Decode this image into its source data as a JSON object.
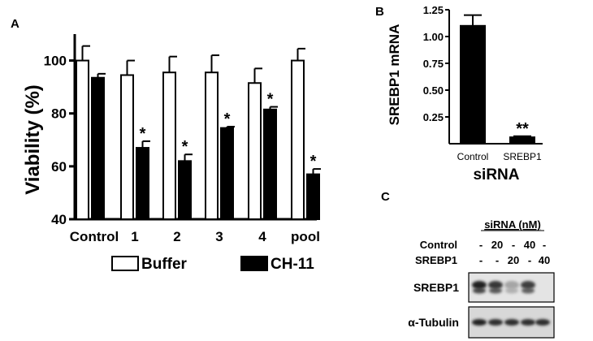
{
  "chart_data": [
    {
      "panel": "A",
      "type": "bar",
      "ylabel": "Viability (%)",
      "ylim": [
        40,
        110
      ],
      "yticks": [
        "40",
        "60",
        "80",
        "100"
      ],
      "categories": [
        "Control",
        "1",
        "2",
        "3",
        "4",
        "pool"
      ],
      "series": [
        {
          "name": "Buffer",
          "color": "#ffffff",
          "values": [
            100,
            94.5,
            95.5,
            95.5,
            91.5,
            100
          ],
          "errors": [
            5.5,
            5.5,
            6,
            6.5,
            5.5,
            4.5
          ]
        },
        {
          "name": "CH-11",
          "color": "#000000",
          "values": [
            93.5,
            67,
            62,
            74.5,
            81.5,
            57
          ],
          "errors": [
            1.5,
            2.5,
            2.5,
            0.5,
            1,
            2
          ],
          "annotations": [
            "",
            "*",
            "*",
            "*",
            "*",
            "*"
          ]
        }
      ],
      "grid": false,
      "legend": "bottom"
    },
    {
      "panel": "B",
      "type": "bar",
      "xlabel": "siRNA",
      "ylabel": "SREBP1 mRNA",
      "ylim": [
        0,
        1.25
      ],
      "yticks": [
        "0.25",
        "0.50",
        "0.75",
        "1.00",
        "1.25"
      ],
      "categories": [
        "Control",
        "SREBP1"
      ],
      "values": [
        1.1,
        0.06
      ],
      "errors": [
        0.1,
        0.01
      ],
      "annotations": [
        "",
        "**"
      ],
      "color": "#000000"
    }
  ],
  "blot": {
    "panel": "C",
    "header": "siRNA (nM)",
    "rows": [
      {
        "label": "Control",
        "cells": [
          "-",
          "20",
          "-",
          "40",
          "-"
        ]
      },
      {
        "label": "SREBP1",
        "cells": [
          "-",
          "-",
          "20",
          "-",
          "40"
        ]
      }
    ],
    "bands": [
      {
        "label": "SREBP1",
        "intensity": [
          1.0,
          0.9,
          0.35,
          0.85,
          0.0
        ]
      },
      {
        "label": "α-Tubulin",
        "intensity": [
          1.0,
          0.95,
          0.95,
          0.95,
          0.95
        ]
      }
    ]
  }
}
